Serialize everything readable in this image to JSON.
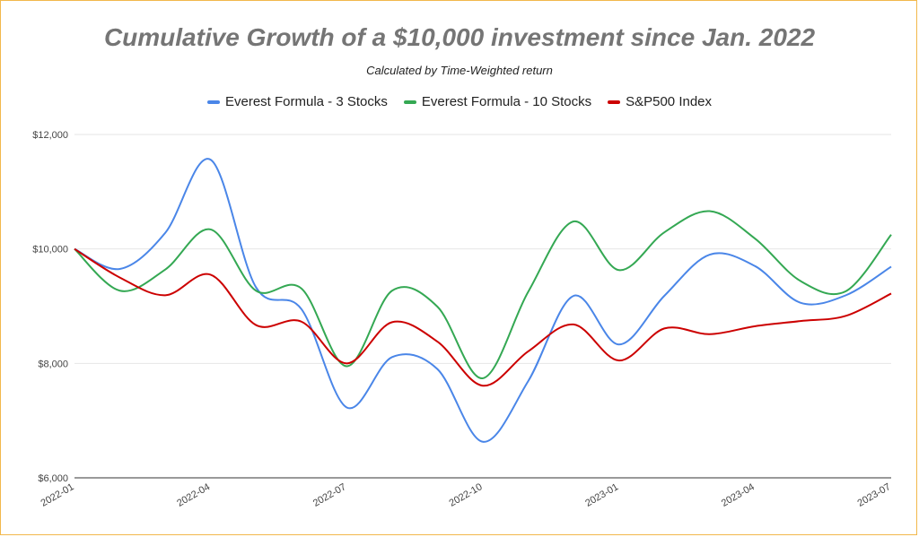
{
  "chart_data": {
    "type": "line",
    "title": "Cumulative Growth of a $10,000 investment since Jan. 2022",
    "subtitle": "Calculated by Time-Weighted return",
    "xlabel": "",
    "ylabel": "",
    "ylim": [
      6000,
      12000
    ],
    "y_ticks": [
      6000,
      8000,
      10000,
      12000
    ],
    "y_tick_labels": [
      "$6,000",
      "$8,000",
      "$10,000",
      "$12,000"
    ],
    "x": [
      "2022-01",
      "2022-02",
      "2022-03",
      "2022-04",
      "2022-05",
      "2022-06",
      "2022-07",
      "2022-08",
      "2022-09",
      "2022-10",
      "2022-11",
      "2022-12",
      "2023-01",
      "2023-02",
      "2023-03",
      "2023-04",
      "2023-05",
      "2023-06",
      "2023-07"
    ],
    "x_tick_labels": [
      "2022-01",
      "2022-04",
      "2022-07",
      "2022-10",
      "2023-01",
      "2023-04",
      "2023-07"
    ],
    "x_tick_indices": [
      0,
      3,
      6,
      9,
      12,
      15,
      18
    ],
    "grid": true,
    "legend_position": "top",
    "series": [
      {
        "name": "Everest Formula - 3 Stocks",
        "color": "#4a86e8",
        "values": [
          10000,
          9650,
          10280,
          11560,
          9330,
          8950,
          7230,
          8110,
          7900,
          6630,
          7690,
          9180,
          8330,
          9180,
          9900,
          9700,
          9060,
          9190,
          9690
        ]
      },
      {
        "name": "Everest Formula - 10 Stocks",
        "color": "#34a853",
        "values": [
          10000,
          9270,
          9640,
          10340,
          9270,
          9310,
          7950,
          9270,
          8990,
          7740,
          9250,
          10480,
          9630,
          10290,
          10660,
          10180,
          9440,
          9260,
          10250
        ]
      },
      {
        "name": "S&P500 Index",
        "color": "#cc0000",
        "values": [
          10000,
          9500,
          9190,
          9550,
          8670,
          8730,
          8000,
          8720,
          8380,
          7610,
          8210,
          8680,
          8050,
          8610,
          8510,
          8650,
          8740,
          8830,
          9220
        ]
      }
    ]
  }
}
